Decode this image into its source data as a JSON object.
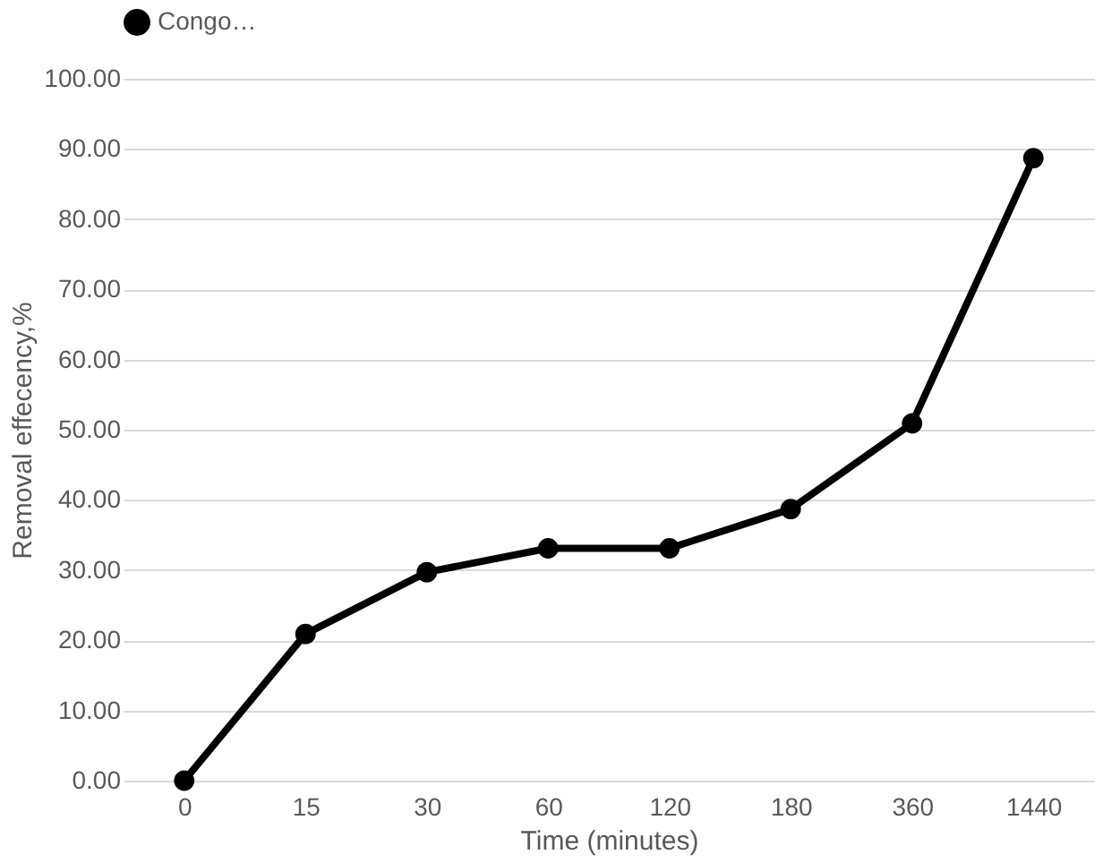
{
  "chart_data": {
    "type": "line",
    "xlabel": "Time (minutes)",
    "ylabel": "Removal effecency,%",
    "categories": [
      "0",
      "15",
      "30",
      "60",
      "120",
      "180",
      "360",
      "1440"
    ],
    "series": [
      {
        "name": "Congo…",
        "color": "#000000",
        "values": [
          0,
          20.9,
          29.7,
          33.1,
          33.1,
          38.7,
          50.9,
          88.7
        ]
      }
    ],
    "ylim": [
      0,
      100
    ],
    "yticks": [
      {
        "value": 0,
        "label": "0.00"
      },
      {
        "value": 10,
        "label": "10.00"
      },
      {
        "value": 20,
        "label": "20.00"
      },
      {
        "value": 30,
        "label": "30.00"
      },
      {
        "value": 40,
        "label": "40.00"
      },
      {
        "value": 50,
        "label": "50.00"
      },
      {
        "value": 60,
        "label": "60.00"
      },
      {
        "value": 70,
        "label": "70.00"
      },
      {
        "value": 80,
        "label": "80.00"
      },
      {
        "value": 90,
        "label": "90.00"
      },
      {
        "value": 100,
        "label": "100.00"
      }
    ],
    "grid": "y",
    "legend": "top",
    "marker": "circle",
    "line_style": "solid"
  }
}
